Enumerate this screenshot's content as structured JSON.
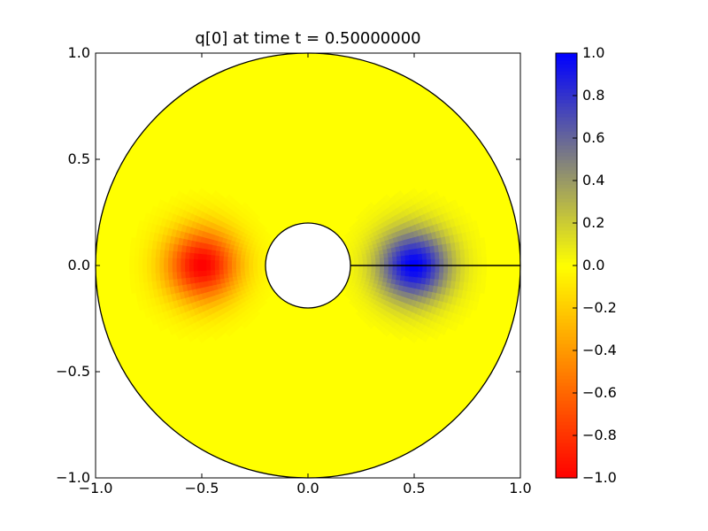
{
  "chart_data": {
    "type": "heatmap",
    "title": "q[0] at time t =     0.50000000",
    "xlabel": "",
    "ylabel": "",
    "xlim": [
      -1.0,
      1.0
    ],
    "ylim": [
      -1.0,
      1.0
    ],
    "x_ticks": [
      "−1.0",
      "−0.5",
      "0.0",
      "0.5",
      "1.0"
    ],
    "x_tick_values": [
      -1.0,
      -0.5,
      0.0,
      0.5,
      1.0
    ],
    "y_ticks": [
      "−1.0",
      "−0.5",
      "0.0",
      "0.5",
      "1.0"
    ],
    "y_tick_values": [
      -1.0,
      -0.5,
      0.0,
      0.5,
      1.0
    ],
    "domain": {
      "shape": "annulus",
      "inner_radius": 0.2,
      "outer_radius": 1.0,
      "cut_line": {
        "from": [
          0.2,
          0.0
        ],
        "to": [
          1.0,
          0.0
        ]
      }
    },
    "field": {
      "background_value": 0.0,
      "blobs": [
        {
          "center": [
            -0.5,
            0.0
          ],
          "peak": -1.0,
          "width": 0.12
        },
        {
          "center": [
            0.5,
            0.0
          ],
          "peak": 1.0,
          "width": 0.12
        }
      ]
    },
    "colorbar": {
      "range": [
        -1.0,
        1.0
      ],
      "ticks": [
        "−1.0",
        "−0.8",
        "−0.6",
        "−0.4",
        "−0.2",
        "0.0",
        "0.2",
        "0.4",
        "0.6",
        "0.8",
        "1.0"
      ],
      "tick_values": [
        -1.0,
        -0.8,
        -0.6,
        -0.4,
        -0.2,
        0.0,
        0.2,
        0.4,
        0.6,
        0.8,
        1.0
      ],
      "colormap": [
        {
          "value": -1.0,
          "color": "#ff0000"
        },
        {
          "value": 0.0,
          "color": "#ffff00"
        },
        {
          "value": 1.0,
          "color": "#0000ff"
        }
      ]
    }
  }
}
